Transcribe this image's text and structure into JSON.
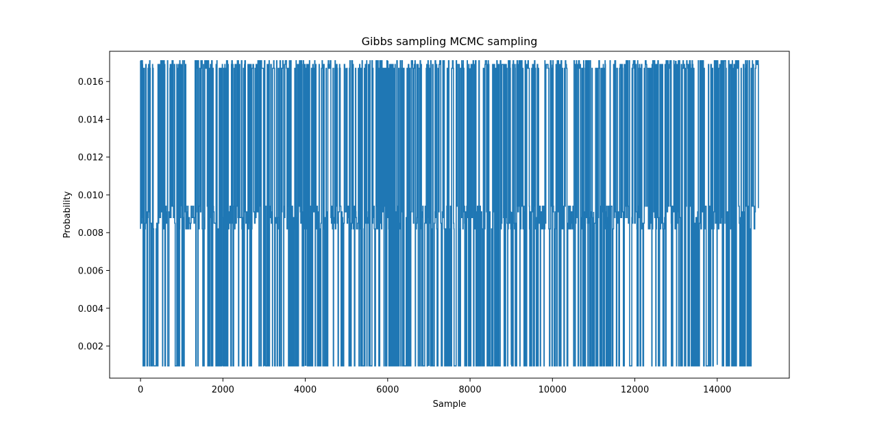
{
  "chart_data": {
    "type": "line",
    "title": "Gibbs sampling MCMC sampling",
    "xlabel": "Sample",
    "ylabel": "Probability",
    "xlim": [
      -750,
      15750
    ],
    "ylim": [
      0.0003,
      0.0176
    ],
    "xticks": [
      0,
      2000,
      4000,
      6000,
      8000,
      10000,
      12000,
      14000
    ],
    "xtick_labels": [
      "0",
      "2000",
      "4000",
      "6000",
      "8000",
      "10000",
      "12000",
      "14000"
    ],
    "yticks": [
      0.002,
      0.004,
      0.006,
      0.008,
      0.01,
      0.012,
      0.014,
      0.016
    ],
    "ytick_labels": [
      "0.002",
      "0.004",
      "0.006",
      "0.008",
      "0.010",
      "0.012",
      "0.014",
      "0.016"
    ],
    "grid": false,
    "series": [
      {
        "color": "#1f77b4",
        "n_samples": 15000,
        "levels": [
          0.00095,
          0.0082,
          0.0085,
          0.0088,
          0.0091,
          0.0094,
          0.0167,
          0.0169,
          0.0171
        ],
        "gaps_x": [
          [
            1100,
            1310
          ],
          [
            9710,
            9760
          ],
          [
            10370,
            10510
          ]
        ],
        "x": [
          0,
          1000,
          2000,
          3000,
          4000,
          5000,
          6000,
          7000,
          8000,
          9000,
          10000,
          11000,
          12000,
          13000,
          14000,
          15000
        ],
        "y": [
          0.0085,
          0.0169,
          0.001,
          0.0091,
          0.0167,
          0.0095,
          0.0088,
          0.0169,
          0.0088,
          0.001,
          0.0169,
          0.0091,
          0.0085,
          0.0167,
          0.001,
          0.0093
        ]
      }
    ]
  }
}
